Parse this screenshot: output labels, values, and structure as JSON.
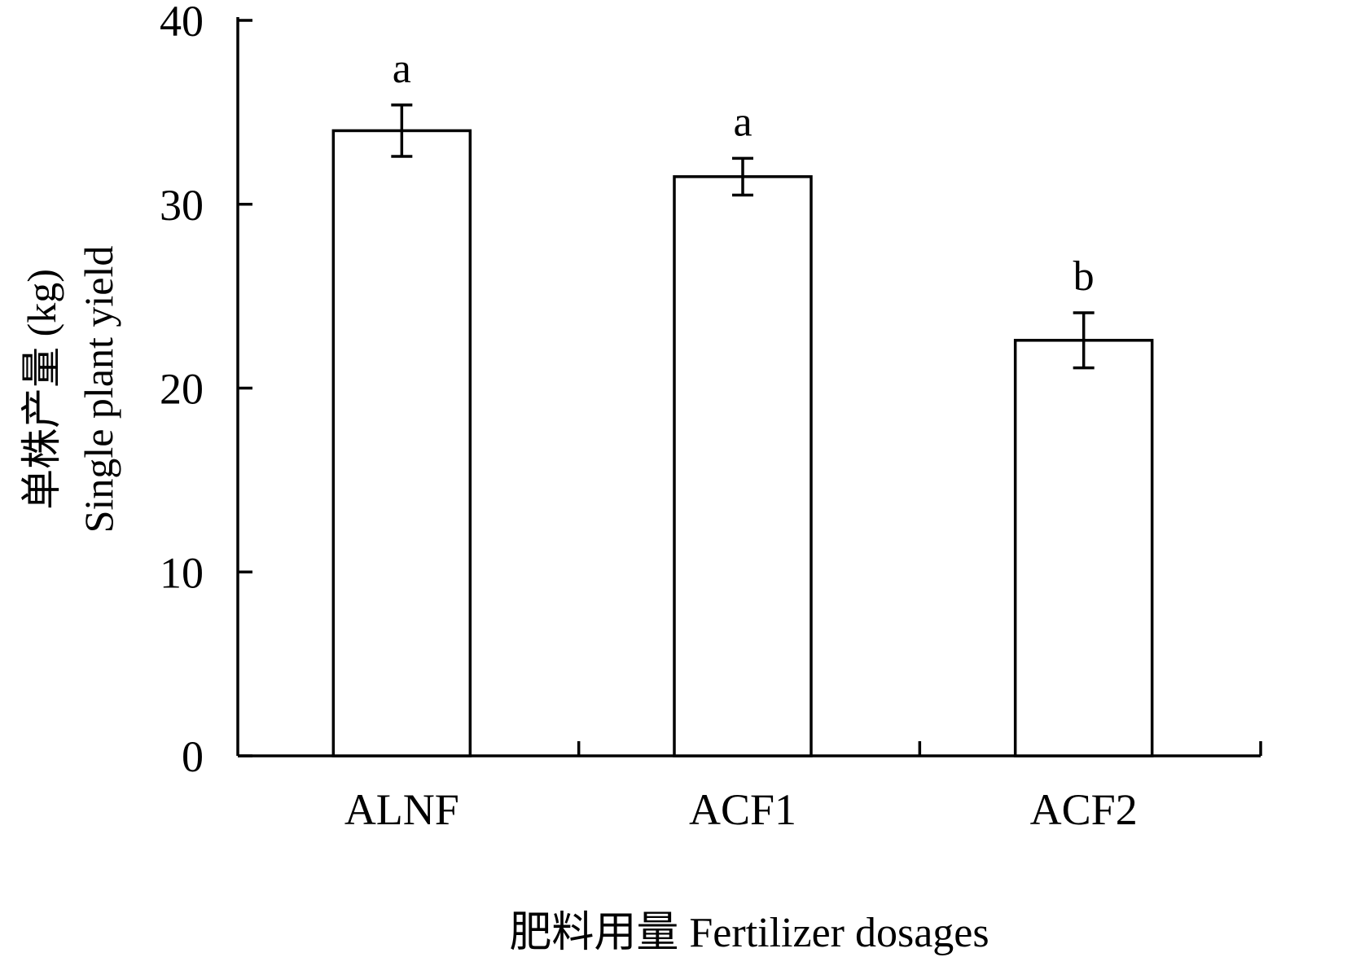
{
  "chart_data": {
    "type": "bar",
    "categories": [
      "ALNF",
      "ACF1",
      "ACF2"
    ],
    "series": [
      {
        "values": [
          34.0,
          31.5,
          22.6
        ],
        "errors": [
          1.4,
          1.0,
          1.5
        ],
        "significance_labels": [
          "a",
          "a",
          "b"
        ]
      }
    ],
    "xlabel": "肥料用量 Fertilizer dosages",
    "ylabel_line1": "单株产量 (kg)",
    "ylabel_line2": "Single plant yield",
    "ylim": [
      0,
      40
    ],
    "yticks": [
      0,
      10,
      20,
      30,
      40
    ],
    "grid": false,
    "legend": "none",
    "colors": {
      "bar_fill": "#ffffff",
      "bar_stroke": "#000000",
      "axis": "#000000"
    }
  }
}
